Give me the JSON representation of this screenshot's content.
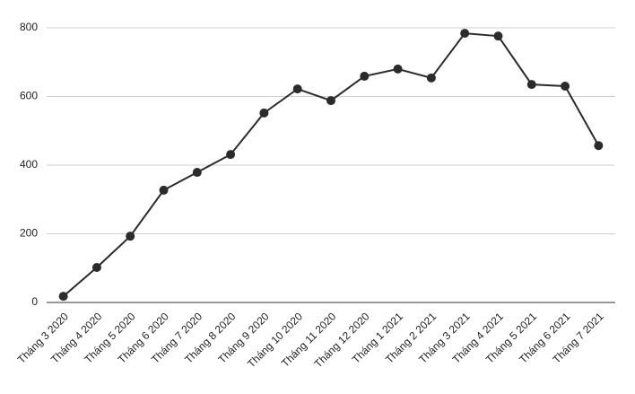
{
  "chart_data": {
    "type": "line",
    "categories": [
      "Tháng 3 2020",
      "Tháng 4 2020",
      "Tháng 5 2020",
      "Tháng 6 2020",
      "Tháng 7 2020",
      "Tháng 8 2020",
      "Tháng 9 2020",
      "Tháng 10 2020",
      "Tháng 11 2020",
      "Tháng 12 2020",
      "Tháng 1 2021",
      "Tháng 2 2021",
      "Tháng 3 2021",
      "Tháng 4 2021",
      "Tháng 5 2021",
      "Tháng 6 2021",
      "Tháng 7 2021"
    ],
    "values": [
      18,
      102,
      193,
      327,
      379,
      431,
      552,
      622,
      588,
      659,
      680,
      654,
      784,
      776,
      635,
      630,
      457
    ],
    "color": "#2b2b2b",
    "ylim": [
      0,
      800
    ],
    "yticks": [
      0,
      200,
      400,
      600,
      800
    ],
    "grid": true
  }
}
